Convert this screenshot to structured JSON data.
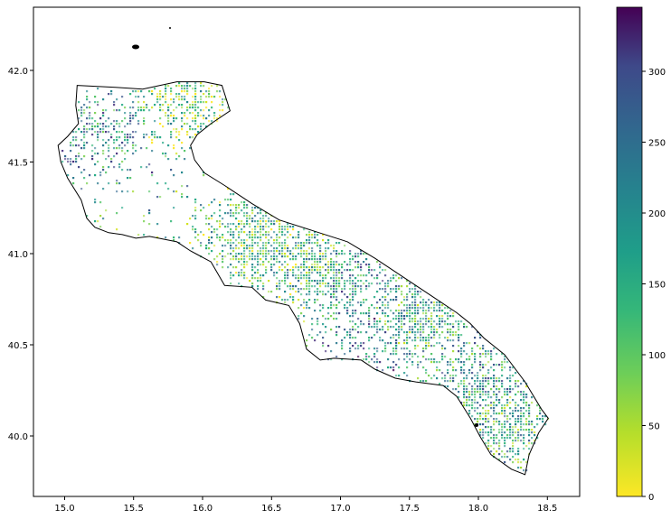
{
  "chart_data": {
    "type": "heatmap",
    "title": "",
    "xlabel": "",
    "ylabel": "",
    "xlim": [
      14.75,
      18.75
    ],
    "ylim": [
      39.67,
      42.36
    ],
    "x_ticks": [
      "15.0",
      "15.5",
      "16.0",
      "16.5",
      "17.0",
      "17.5",
      "18.0",
      "18.5"
    ],
    "y_ticks": [
      "40.0",
      "40.5",
      "41.0",
      "41.5",
      "42.0"
    ],
    "colorbar": {
      "colormap": "viridis_r",
      "min": 0,
      "max": 345,
      "ticks": [
        "0",
        "50",
        "100",
        "150",
        "200",
        "250",
        "300"
      ]
    },
    "grid": false,
    "outline": [
      [
        15.07,
        41.93
      ],
      [
        15.35,
        41.92
      ],
      [
        15.55,
        41.91
      ],
      [
        15.8,
        41.95
      ],
      [
        16.0,
        41.95
      ],
      [
        16.13,
        41.93
      ],
      [
        16.19,
        41.79
      ],
      [
        16.05,
        41.72
      ],
      [
        15.95,
        41.66
      ],
      [
        15.9,
        41.6
      ],
      [
        15.93,
        41.52
      ],
      [
        16.0,
        41.45
      ],
      [
        16.15,
        41.38
      ],
      [
        16.35,
        41.28
      ],
      [
        16.55,
        41.19
      ],
      [
        16.8,
        41.13
      ],
      [
        17.05,
        41.07
      ],
      [
        17.25,
        40.98
      ],
      [
        17.45,
        40.88
      ],
      [
        17.65,
        40.78
      ],
      [
        17.85,
        40.68
      ],
      [
        17.95,
        40.62
      ],
      [
        18.05,
        40.54
      ],
      [
        18.2,
        40.45
      ],
      [
        18.35,
        40.3
      ],
      [
        18.47,
        40.15
      ],
      [
        18.52,
        40.1
      ],
      [
        18.45,
        40.02
      ],
      [
        18.38,
        39.9
      ],
      [
        18.35,
        39.79
      ],
      [
        18.25,
        39.82
      ],
      [
        18.1,
        39.9
      ],
      [
        18.02,
        40.0
      ],
      [
        17.95,
        40.1
      ],
      [
        17.85,
        40.22
      ],
      [
        17.75,
        40.28
      ],
      [
        17.55,
        40.3
      ],
      [
        17.4,
        40.32
      ],
      [
        17.25,
        40.37
      ],
      [
        17.15,
        40.42
      ],
      [
        16.95,
        40.43
      ],
      [
        16.85,
        40.42
      ],
      [
        16.75,
        40.48
      ],
      [
        16.7,
        40.62
      ],
      [
        16.62,
        40.72
      ],
      [
        16.45,
        40.75
      ],
      [
        16.35,
        40.82
      ],
      [
        16.15,
        40.83
      ],
      [
        16.05,
        40.96
      ],
      [
        15.95,
        41.0
      ],
      [
        15.9,
        41.02
      ],
      [
        15.8,
        41.07
      ],
      [
        15.6,
        41.1
      ],
      [
        15.5,
        41.09
      ],
      [
        15.4,
        41.11
      ],
      [
        15.3,
        41.12
      ],
      [
        15.2,
        41.15
      ],
      [
        15.14,
        41.2
      ],
      [
        15.1,
        41.3
      ],
      [
        15.0,
        41.42
      ],
      [
        14.95,
        41.51
      ],
      [
        14.93,
        41.6
      ],
      [
        15.0,
        41.65
      ],
      [
        15.08,
        41.72
      ],
      [
        15.06,
        41.82
      ],
      [
        15.07,
        41.93
      ]
    ]
  }
}
